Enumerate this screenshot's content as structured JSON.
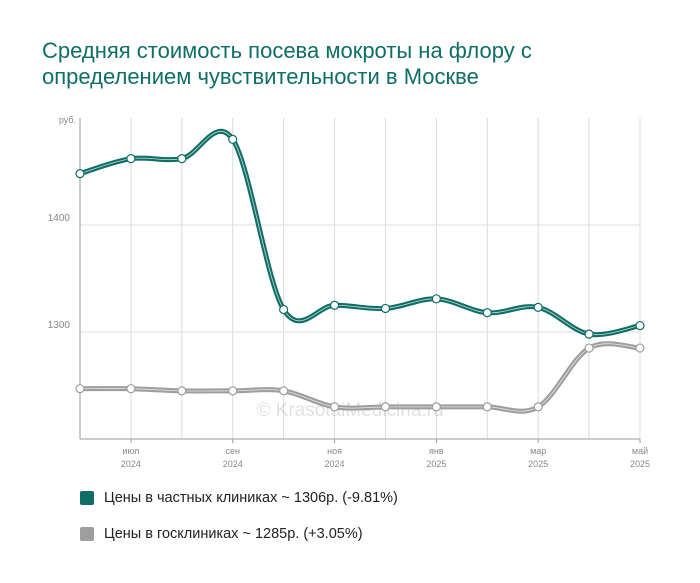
{
  "chart_data": {
    "type": "line",
    "title": "Средняя стоимость посева мокроты на флору с определением чувствительности в Москве",
    "y_unit": "руб.",
    "ylim": [
      1200,
      1500
    ],
    "y_ticks": [
      1300,
      1400
    ],
    "x_ticks": [
      {
        "month": "июл",
        "year": "2024",
        "index": 1
      },
      {
        "month": "сен",
        "year": "2024",
        "index": 3
      },
      {
        "month": "ноя",
        "year": "2024",
        "index": 5
      },
      {
        "month": "янв",
        "year": "2025",
        "index": 7
      },
      {
        "month": "мар",
        "year": "2025",
        "index": 9
      },
      {
        "month": "май",
        "year": "2025",
        "index": 11
      }
    ],
    "series": [
      {
        "name": "Цены в частных клиниках ~ 1306р. (-9.81%)",
        "color": "#0f6e66",
        "values": [
          1448,
          1462,
          1462,
          1480,
          1321,
          1325,
          1322,
          1331,
          1318,
          1323,
          1298,
          1306
        ]
      },
      {
        "name": "Цены в госклиниках ~ 1285р. (+3.05%)",
        "color": "#9e9e9e",
        "values": [
          1247,
          1247,
          1245,
          1245,
          1245,
          1230,
          1230,
          1230,
          1230,
          1230,
          1285,
          1285
        ]
      }
    ],
    "watermark": "© KrasotaiMedicina.ru",
    "grid": true,
    "legend_position": "bottom-left"
  }
}
